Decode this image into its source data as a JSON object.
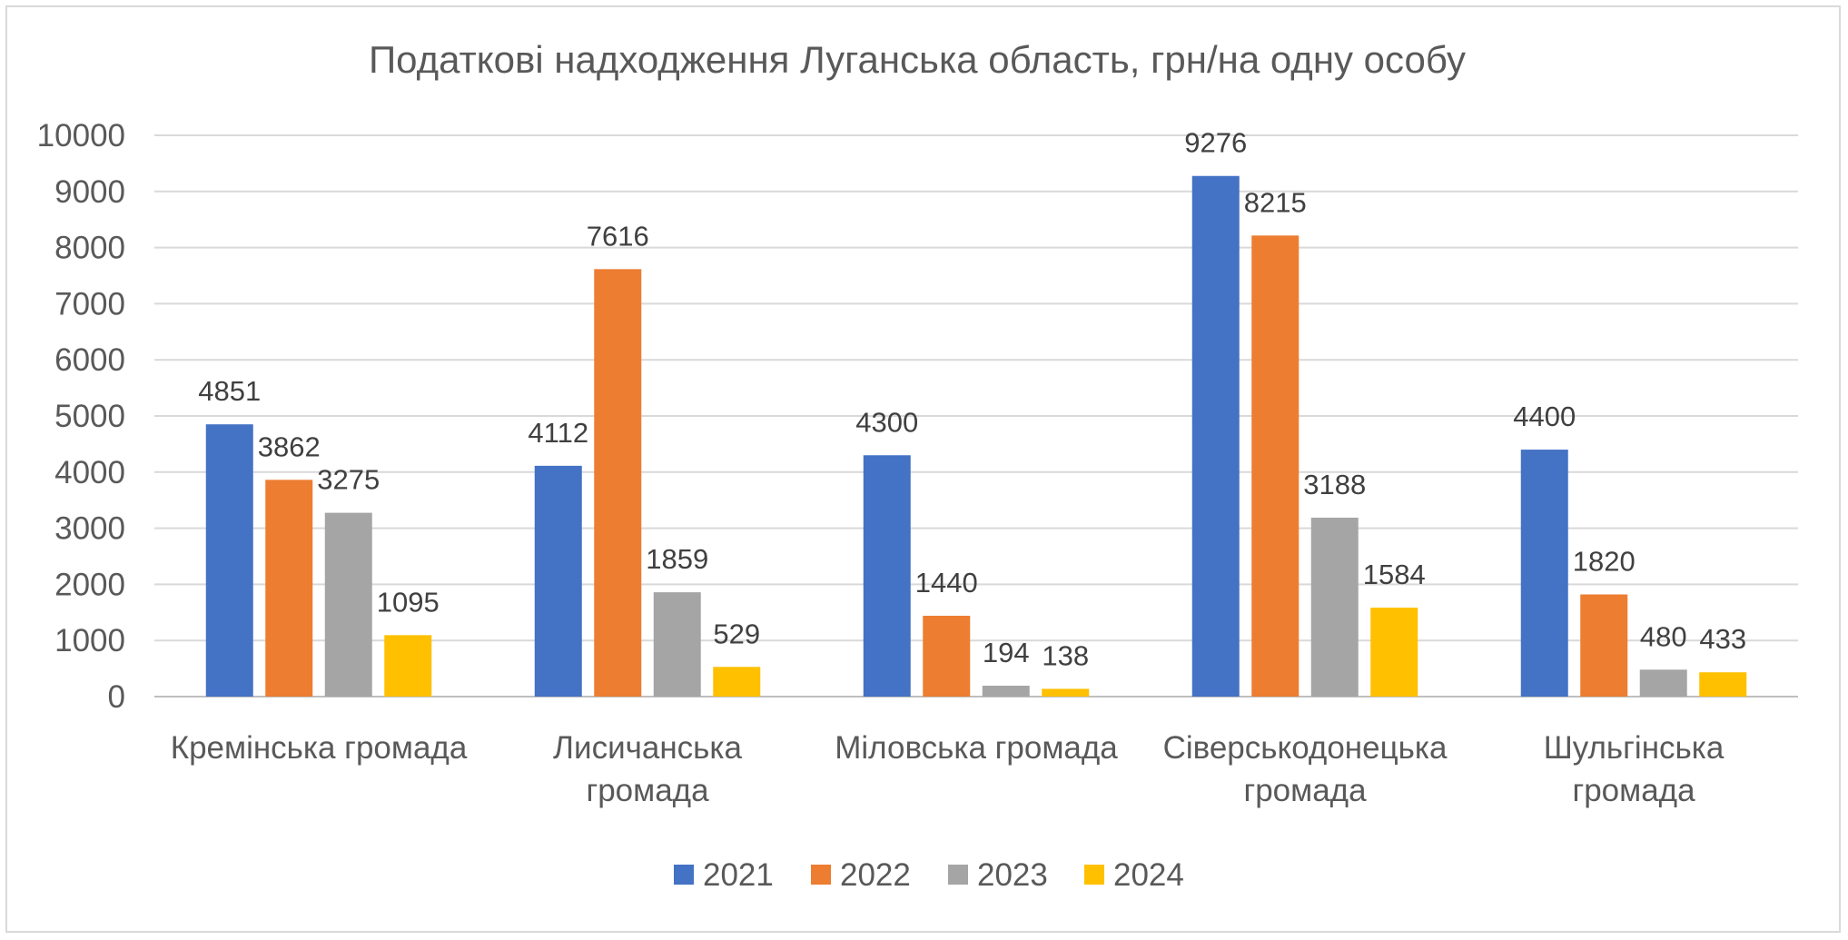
{
  "chart_data": {
    "type": "bar",
    "title": "Податкові надходження Луганська область, грн/на одну особу",
    "categories": [
      [
        "Кремінська громада"
      ],
      [
        "Лисичанська",
        "громада"
      ],
      [
        "Міловська громада"
      ],
      [
        "Сіверськодонецька",
        "громада"
      ],
      [
        "Шульгінська",
        "громада"
      ]
    ],
    "series": [
      {
        "name": "2021",
        "color": "#4472c4",
        "values": [
          4851,
          4112,
          4300,
          9276,
          4400
        ]
      },
      {
        "name": "2022",
        "color": "#ed7d31",
        "values": [
          3862,
          7616,
          1440,
          8215,
          1820
        ]
      },
      {
        "name": "2023",
        "color": "#a5a5a5",
        "values": [
          3275,
          1859,
          194,
          3188,
          480
        ]
      },
      {
        "name": "2024",
        "color": "#ffc000",
        "values": [
          1095,
          529,
          138,
          1584,
          433
        ]
      }
    ],
    "ylim": [
      0,
      10000
    ],
    "yticks": [
      0,
      1000,
      2000,
      3000,
      4000,
      5000,
      6000,
      7000,
      8000,
      9000,
      10000
    ],
    "grid": true,
    "legend": "bottom",
    "data_labels": true
  }
}
